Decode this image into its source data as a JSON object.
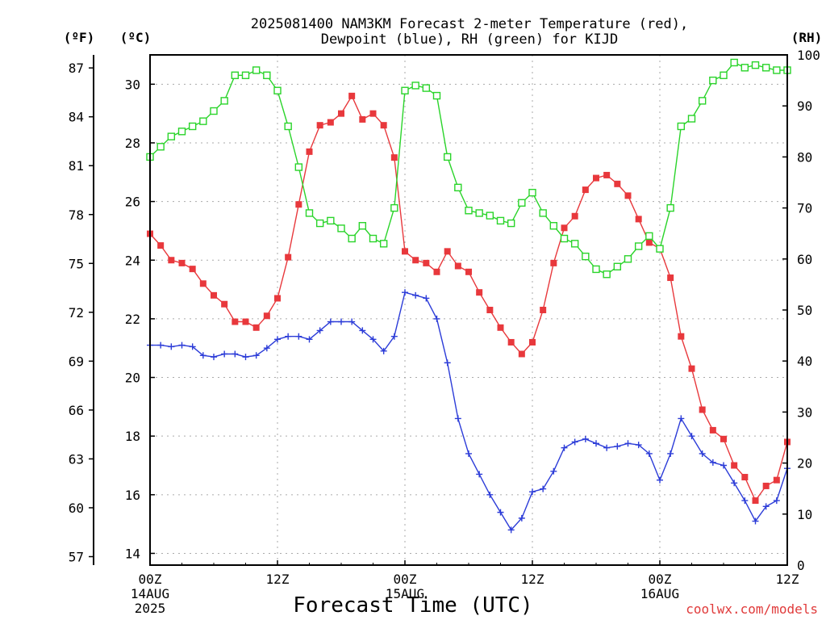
{
  "chart_data": {
    "type": "line",
    "title_line1": "2025081400 NAM3KM Forecast 2-meter Temperature (red),",
    "title_line2": "Dewpoint (blue), RH (green) for KIJD",
    "xlabel": "Forecast Time (UTC)",
    "credit": "coolwx.com/models",
    "units": {
      "f": "(ºF)",
      "c": "(ºC)",
      "rh": "(RH)"
    },
    "x_range_hours": [
      0,
      60
    ],
    "y_c_range": [
      13.6,
      31.0
    ],
    "y_rh_range": [
      0,
      100
    ],
    "x_ticks": [
      {
        "hour": 0,
        "line1": "00Z",
        "line2": "14AUG",
        "line3": "2025"
      },
      {
        "hour": 12,
        "line1": "12Z",
        "line2": "",
        "line3": ""
      },
      {
        "hour": 24,
        "line1": "00Z",
        "line2": "15AUG",
        "line3": ""
      },
      {
        "hour": 36,
        "line1": "12Z",
        "line2": "",
        "line3": ""
      },
      {
        "hour": 48,
        "line1": "00Z",
        "line2": "16AUG",
        "line3": ""
      },
      {
        "hour": 60,
        "line1": "12Z",
        "line2": "",
        "line3": ""
      }
    ],
    "y_c_ticks": [
      "14",
      "16",
      "18",
      "20",
      "22",
      "24",
      "26",
      "28",
      "30"
    ],
    "y_f_ticks": [
      "57",
      "60",
      "63",
      "66",
      "69",
      "72",
      "75",
      "78",
      "81",
      "84",
      "87"
    ],
    "y_rh_ticks": [
      "0",
      "10",
      "20",
      "30",
      "40",
      "50",
      "60",
      "70",
      "80",
      "90",
      "100"
    ],
    "colors": {
      "temperature": "#e8383c",
      "dewpoint": "#2c3cd8",
      "rh": "#2ad42a"
    },
    "series": [
      {
        "key": "temperature",
        "values": [
          24.9,
          24.5,
          24.0,
          23.9,
          23.7,
          23.2,
          22.8,
          22.5,
          21.9,
          21.9,
          21.7,
          22.1,
          22.7,
          24.1,
          25.9,
          27.7,
          28.6,
          28.7,
          29.0,
          29.6,
          28.8,
          29.0,
          28.6,
          27.5,
          24.3,
          24.0,
          23.9,
          23.6,
          24.3,
          23.8,
          23.6,
          22.9,
          22.3,
          21.7,
          21.2,
          20.8,
          21.2,
          22.3,
          23.9,
          25.1,
          25.5,
          26.4,
          26.8,
          26.9,
          26.6,
          26.2,
          25.4,
          24.6,
          24.4,
          23.4,
          21.4,
          20.3,
          18.9,
          18.2,
          17.9,
          17.0,
          16.6,
          15.8,
          16.3,
          16.5,
          17.8
        ]
      },
      {
        "key": "dewpoint",
        "values": [
          21.1,
          21.1,
          21.05,
          21.1,
          21.05,
          20.75,
          20.7,
          20.8,
          20.8,
          20.7,
          20.75,
          21.0,
          21.3,
          21.4,
          21.4,
          21.3,
          21.6,
          21.9,
          21.9,
          21.9,
          21.6,
          21.3,
          20.9,
          21.4,
          22.9,
          22.8,
          22.7,
          22.0,
          20.5,
          18.6,
          17.4,
          16.7,
          16.0,
          15.4,
          14.8,
          15.2,
          16.1,
          16.2,
          16.8,
          17.6,
          17.8,
          17.9,
          17.75,
          17.6,
          17.65,
          17.75,
          17.7,
          17.4,
          16.5,
          17.4,
          18.6,
          18.0,
          17.4,
          17.1,
          17.0,
          16.4,
          15.8,
          15.1,
          15.6,
          15.8,
          16.9
        ]
      },
      {
        "key": "rh",
        "values": [
          80,
          82,
          84,
          85,
          86,
          87,
          89,
          91,
          96,
          96,
          97,
          96,
          93,
          86,
          78,
          69,
          67,
          67.5,
          66,
          64,
          66.5,
          64,
          63,
          70,
          93,
          94,
          93.5,
          92,
          80,
          74,
          69.5,
          69,
          68.5,
          67.5,
          67,
          71,
          73,
          69,
          66.5,
          64,
          63,
          60.5,
          58,
          57,
          58.5,
          60,
          62.5,
          64.5,
          62,
          70,
          86,
          87.5,
          91,
          95,
          96,
          98.5,
          97.5,
          98,
          97.5,
          97,
          97
        ]
      }
    ]
  }
}
